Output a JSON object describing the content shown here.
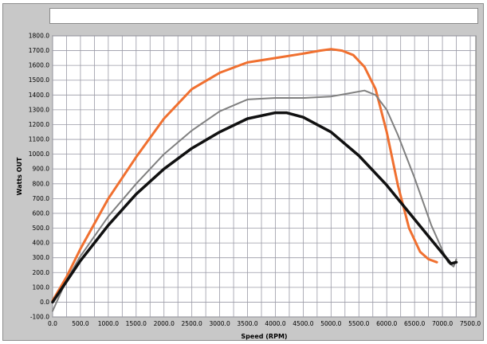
{
  "window": {
    "title": ""
  },
  "chart_data": {
    "type": "line",
    "title": "",
    "xlabel": "Speed (RPM)",
    "ylabel": "Watts OUT",
    "xlim": [
      0,
      7600
    ],
    "ylim": [
      -100,
      1800
    ],
    "grid": true,
    "x_ticks": [
      "0.0",
      "500.0",
      "1000.0",
      "1500.0",
      "2000.0",
      "2500.0",
      "3000.0",
      "3500.0",
      "4000.0",
      "4500.0",
      "5000.0",
      "5500.0",
      "6000.0",
      "6500.0",
      "7000.0",
      "7500.0"
    ],
    "y_ticks": [
      "-100.0",
      "0.0",
      "100.0",
      "200.0",
      "300.0",
      "400.0",
      "500.0",
      "600.0",
      "700.0",
      "800.0",
      "900.0",
      "1000.0",
      "1100.0",
      "1200.0",
      "1300.0",
      "1400.0",
      "1500.0",
      "1600.0",
      "1700.0",
      "1800.0"
    ],
    "colors": {
      "plot_bg": "#ffffff",
      "frame_bg": "#c8c8c8",
      "grid": "#9a9aa6"
    },
    "series": [
      {
        "color": "#f07030",
        "width": 3,
        "x": [
          0,
          250,
          500,
          1000,
          1500,
          2000,
          2500,
          3000,
          3500,
          4000,
          4500,
          4800,
          5000,
          5200,
          5400,
          5600,
          5800,
          6000,
          6200,
          6400,
          6600,
          6750,
          6900
        ],
        "y": [
          10,
          170,
          360,
          700,
          980,
          1240,
          1440,
          1550,
          1620,
          1650,
          1680,
          1700,
          1710,
          1700,
          1670,
          1590,
          1440,
          1150,
          790,
          500,
          340,
          290,
          270
        ]
      },
      {
        "color": "#808080",
        "width": 2,
        "x": [
          0,
          250,
          500,
          1000,
          1500,
          2000,
          2500,
          3000,
          3500,
          4000,
          4500,
          5000,
          5300,
          5600,
          5800,
          6000,
          6200,
          6500,
          6800,
          7000,
          7100,
          7200,
          7250
        ],
        "y": [
          -60,
          150,
          310,
          580,
          800,
          1000,
          1160,
          1290,
          1370,
          1380,
          1380,
          1390,
          1410,
          1430,
          1400,
          1300,
          1130,
          840,
          520,
          350,
          270,
          240,
          290
        ]
      },
      {
        "color": "#111111",
        "width": 3.5,
        "x": [
          0,
          250,
          500,
          1000,
          1500,
          2000,
          2500,
          3000,
          3500,
          4000,
          4200,
          4500,
          5000,
          5500,
          6000,
          6500,
          7000,
          7150,
          7250
        ],
        "y": [
          0,
          140,
          280,
          520,
          730,
          900,
          1040,
          1150,
          1240,
          1280,
          1280,
          1250,
          1150,
          990,
          790,
          560,
          330,
          260,
          270
        ]
      }
    ]
  }
}
